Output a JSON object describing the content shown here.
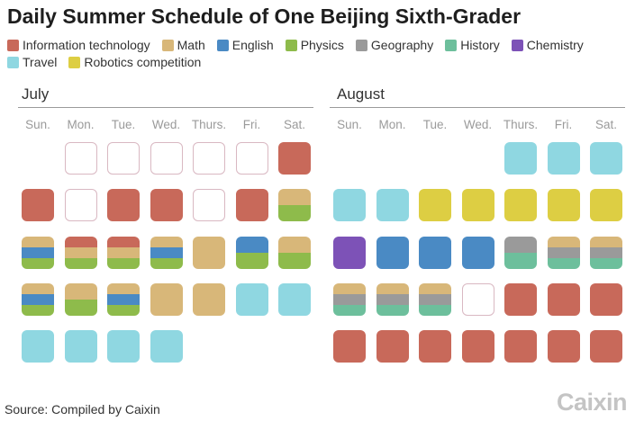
{
  "title": "Daily Summer Schedule of One Beijing Sixth-Grader",
  "source": "Source: Compiled by Caixin",
  "brand": "Caixin",
  "chart_data": {
    "type": "calendar",
    "categories": [
      {
        "key": "IT",
        "name": "Information technology",
        "color": "#c8695a"
      },
      {
        "key": "M",
        "name": "Math",
        "color": "#d8b779"
      },
      {
        "key": "E",
        "name": "English",
        "color": "#4a8ac4"
      },
      {
        "key": "P",
        "name": "Physics",
        "color": "#8ebb4b"
      },
      {
        "key": "G",
        "name": "Geography",
        "color": "#9a9a9a"
      },
      {
        "key": "H",
        "name": "History",
        "color": "#6dbf9c"
      },
      {
        "key": "C",
        "name": "Chemistry",
        "color": "#7d52b7"
      },
      {
        "key": "T",
        "name": "Travel",
        "color": "#8fd7e1"
      },
      {
        "key": "R",
        "name": "Robotics competition",
        "color": "#ddce43"
      }
    ],
    "weekdays": [
      "Sun.",
      "Mon.",
      "Tue.",
      "Wed.",
      "Thurs.",
      "Fri.",
      "Sat."
    ],
    "months": [
      {
        "name": "July",
        "weeks": [
          [
            "none",
            "empty",
            "empty",
            "empty",
            "empty",
            "empty",
            "IT"
          ],
          [
            "IT",
            "empty",
            "IT",
            "IT",
            "empty",
            "IT",
            "M,P"
          ],
          [
            "M,E,P",
            "IT,M,P",
            "IT,M,P",
            "M,E,P",
            "M",
            "E,P",
            "M,P"
          ],
          [
            "M,E,P",
            "M,P",
            "M,E,P",
            "M",
            "M",
            "T",
            "T"
          ],
          [
            "T",
            "T",
            "T",
            "T",
            "none",
            "none",
            "none"
          ]
        ]
      },
      {
        "name": "August",
        "weeks": [
          [
            "none",
            "none",
            "none",
            "none",
            "T",
            "T",
            "T"
          ],
          [
            "T",
            "T",
            "R",
            "R",
            "R",
            "R",
            "R"
          ],
          [
            "C",
            "E",
            "E",
            "E",
            "G,H",
            "M,G,H",
            "M,G,H"
          ],
          [
            "M,G,H",
            "M,G,H",
            "M,G,H",
            "empty",
            "IT",
            "IT",
            "IT"
          ],
          [
            "IT",
            "IT",
            "IT",
            "IT",
            "IT",
            "IT",
            "IT"
          ]
        ]
      }
    ]
  }
}
